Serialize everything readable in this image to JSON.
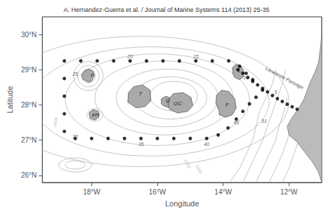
{
  "chart_data": {
    "type": "scatter",
    "title": "A. Hernandez-Guerra et al. / Journal of Marine Systems 114 (2013) 25-35",
    "xlabel": "Longitude",
    "ylabel": "Latitude",
    "xlim": [
      -19.5,
      -11.0
    ],
    "ylim": [
      25.8,
      30.5
    ],
    "xticks": [
      {
        "value": -18,
        "label": "18°W"
      },
      {
        "value": -16,
        "label": "16°W"
      },
      {
        "value": -14,
        "label": "14°W"
      },
      {
        "value": -12,
        "label": "12°W"
      }
    ],
    "yticks": [
      {
        "value": 26,
        "label": "26°N"
      },
      {
        "value": 27,
        "label": "27°N"
      },
      {
        "value": 28,
        "label": "28°N"
      },
      {
        "value": 29,
        "label": "29°N"
      },
      {
        "value": 30,
        "label": "30°N"
      }
    ],
    "grid": false,
    "contours": {
      "color": "#aaaaaa",
      "ellipses": [
        {
          "cx": -16.5,
          "cy": 28.1,
          "rx": 4.5,
          "ry": 1.85
        },
        {
          "cx": -16.2,
          "cy": 28.1,
          "rx": 3.6,
          "ry": 1.55
        },
        {
          "cx": -16.0,
          "cy": 28.15,
          "rx": 2.8,
          "ry": 1.3
        },
        {
          "cx": -15.8,
          "cy": 28.2,
          "rx": 2.1,
          "ry": 1.05
        },
        {
          "cx": -15.7,
          "cy": 28.2,
          "rx": 1.55,
          "ry": 0.82
        },
        {
          "cx": -15.6,
          "cy": 28.2,
          "rx": 1.1,
          "ry": 0.6
        },
        {
          "cx": -15.5,
          "cy": 28.25,
          "rx": 0.72,
          "ry": 0.42
        },
        {
          "cx": -18.1,
          "cy": 28.82,
          "rx": 0.21,
          "ry": 0.1925
        },
        {
          "cx": -18.1,
          "cy": 28.82,
          "rx": 0.33,
          "ry": 0.3025
        },
        {
          "cx": -18.1,
          "cy": 28.82,
          "rx": 0.45,
          "ry": 0.4125
        },
        {
          "cx": -17.9,
          "cy": 27.72,
          "rx": 0.14,
          "ry": 0.1
        },
        {
          "cx": -17.9,
          "cy": 27.72,
          "rx": 0.245,
          "ry": 0.175
        },
        {
          "cx": -18.5,
          "cy": 26.3,
          "rx": 0.3,
          "ry": 0.12
        },
        {
          "cx": -18.5,
          "cy": 26.3,
          "rx": 0.5,
          "ry": 0.2
        }
      ],
      "lines": [
        [
          [
            -13.8,
            25.8
          ],
          [
            -13.5,
            26.2
          ],
          [
            -13.3,
            26.6
          ],
          [
            -13.1,
            27.0
          ],
          [
            -13.0,
            27.4
          ],
          [
            -12.9,
            27.8
          ],
          [
            -12.7,
            28.2
          ],
          [
            -12.5,
            28.6
          ],
          [
            -12.4,
            29.0
          ]
        ],
        [
          [
            -13.4,
            25.8
          ],
          [
            -13.2,
            26.2
          ],
          [
            -13.0,
            26.6
          ],
          [
            -12.8,
            27.0
          ],
          [
            -12.65,
            27.4
          ],
          [
            -12.5,
            27.8
          ],
          [
            -12.35,
            28.2
          ],
          [
            -12.2,
            28.6
          ],
          [
            -12.1,
            29.0
          ]
        ],
        [
          [
            -13.0,
            25.8
          ],
          [
            -12.8,
            26.2
          ],
          [
            -12.6,
            26.6
          ],
          [
            -12.4,
            27.0
          ],
          [
            -12.3,
            27.4
          ],
          [
            -12.15,
            27.8
          ],
          [
            -12.05,
            28.2
          ]
        ],
        [
          [
            -12.6,
            25.8
          ],
          [
            -12.4,
            26.2
          ],
          [
            -12.2,
            26.6
          ],
          [
            -12.05,
            27.0
          ],
          [
            -11.9,
            27.4
          ],
          [
            -11.8,
            27.8
          ]
        ],
        [
          [
            -12.2,
            25.8
          ],
          [
            -12.0,
            26.2
          ],
          [
            -11.85,
            26.6
          ],
          [
            -11.7,
            27.0
          ],
          [
            -11.6,
            27.4
          ]
        ]
      ],
      "labels": [
        {
          "text": "-4000",
          "x": -19.1,
          "y": 27.5
        },
        {
          "text": "-3000",
          "x": -15.1,
          "y": 26.35
        },
        {
          "text": "-2000",
          "x": -14.75,
          "y": 26.2
        }
      ]
    },
    "land": {
      "color": "#bbbbbb",
      "coast": [
        [
          -11.0,
          25.8
        ],
        [
          -11.1,
          26.1
        ],
        [
          -11.3,
          26.4
        ],
        [
          -11.55,
          26.7
        ],
        [
          -11.75,
          26.95
        ],
        [
          -12.0,
          27.15
        ],
        [
          -12.05,
          27.4
        ],
        [
          -11.9,
          27.65
        ],
        [
          -11.7,
          27.9
        ],
        [
          -11.55,
          28.15
        ],
        [
          -11.45,
          28.4
        ],
        [
          -11.35,
          28.65
        ],
        [
          -11.2,
          28.95
        ],
        [
          -11.1,
          29.2
        ],
        [
          -11.05,
          29.55
        ],
        [
          -11.0,
          30.0
        ],
        [
          -11.0,
          30.5
        ]
      ]
    },
    "islands": {
      "color": "#aaaaaa",
      "items": [
        {
          "name": "P",
          "label_x": -17.98,
          "label_y": 28.83,
          "poly": [
            [
              -18.1,
              28.65
            ],
            [
              -18.25,
              28.72
            ],
            [
              -18.3,
              28.83
            ],
            [
              -18.22,
              28.97
            ],
            [
              -18.08,
              29.02
            ],
            [
              -17.95,
              28.95
            ],
            [
              -17.92,
              28.82
            ],
            [
              -18.0,
              28.68
            ],
            [
              -18.1,
              28.65
            ]
          ]
        },
        {
          "name": "G",
          "label_x": -15.68,
          "label_y": 28.12,
          "poly": [
            [
              -15.82,
              27.98
            ],
            [
              -15.65,
              27.92
            ],
            [
              -15.55,
              28.02
            ],
            [
              -15.6,
              28.2
            ],
            [
              -15.75,
              28.25
            ],
            [
              -15.88,
              28.17
            ],
            [
              -15.88,
              28.03
            ],
            [
              -15.82,
              27.98
            ]
          ]
        },
        {
          "name": "T",
          "label_x": -16.52,
          "label_y": 28.32,
          "poly": [
            [
              -16.9,
              28.08
            ],
            [
              -16.65,
              27.92
            ],
            [
              -16.38,
              27.95
            ],
            [
              -16.2,
              28.12
            ],
            [
              -16.22,
              28.42
            ],
            [
              -16.45,
              28.57
            ],
            [
              -16.72,
              28.52
            ],
            [
              -16.88,
              28.35
            ],
            [
              -16.9,
              28.08
            ]
          ]
        },
        {
          "name": "eH",
          "label_x": -17.88,
          "label_y": 27.72,
          "poly": [
            [
              -18.05,
              27.62
            ],
            [
              -17.9,
              27.57
            ],
            [
              -17.78,
              27.65
            ],
            [
              -17.8,
              27.82
            ],
            [
              -17.95,
              27.87
            ],
            [
              -18.08,
              27.78
            ],
            [
              -18.05,
              27.62
            ]
          ]
        },
        {
          "name": "GC",
          "label_x": -15.38,
          "label_y": 28.05,
          "poly": [
            [
              -15.62,
              27.87
            ],
            [
              -15.38,
              27.77
            ],
            [
              -15.08,
              27.82
            ],
            [
              -14.92,
              27.98
            ],
            [
              -14.98,
              28.22
            ],
            [
              -15.22,
              28.35
            ],
            [
              -15.52,
              28.32
            ],
            [
              -15.68,
              28.12
            ],
            [
              -15.65,
              27.92
            ],
            [
              -15.62,
              27.87
            ]
          ]
        },
        {
          "name": "F",
          "label_x": -13.88,
          "label_y": 28.0,
          "poly": [
            [
              -14.12,
              27.72
            ],
            [
              -13.92,
              27.65
            ],
            [
              -13.72,
              27.72
            ],
            [
              -13.6,
              27.92
            ],
            [
              -13.65,
              28.18
            ],
            [
              -13.82,
              28.38
            ],
            [
              -14.05,
              28.42
            ],
            [
              -14.2,
              28.28
            ],
            [
              -14.22,
              28.05
            ],
            [
              -14.12,
              27.82
            ],
            [
              -14.12,
              27.72
            ]
          ]
        },
        {
          "name": "L",
          "label_x": -13.5,
          "label_y": 28.98,
          "poly": [
            [
              -13.65,
              28.78
            ],
            [
              -13.5,
              28.72
            ],
            [
              -13.38,
              28.8
            ],
            [
              -13.38,
              28.98
            ],
            [
              -13.48,
              29.12
            ],
            [
              -13.62,
              29.15
            ],
            [
              -13.72,
              29.05
            ],
            [
              -13.7,
              28.88
            ],
            [
              -13.65,
              28.78
            ]
          ]
        }
      ]
    },
    "stations": {
      "color": "#000000",
      "points": [
        [
          -18.83,
          29.25
        ],
        [
          -18.33,
          29.25
        ],
        [
          -17.83,
          29.25
        ],
        [
          -17.33,
          29.25
        ],
        [
          -16.83,
          29.25
        ],
        [
          -16.33,
          29.25
        ],
        [
          -15.83,
          29.25
        ],
        [
          -15.33,
          29.25
        ],
        [
          -14.83,
          29.25
        ],
        [
          -14.33,
          29.25
        ],
        [
          -13.83,
          29.25
        ],
        [
          -13.5,
          29.1
        ],
        [
          -13.3,
          28.9
        ],
        [
          -13.1,
          28.72
        ],
        [
          -18.83,
          28.75
        ],
        [
          -18.83,
          28.25
        ],
        [
          -18.83,
          27.75
        ],
        [
          -18.83,
          27.25
        ],
        [
          -18.5,
          27.05
        ],
        [
          -18.0,
          27.05
        ],
        [
          -17.5,
          27.05
        ],
        [
          -17.0,
          27.05
        ],
        [
          -16.5,
          27.05
        ],
        [
          -16.0,
          27.05
        ],
        [
          -15.5,
          27.05
        ],
        [
          -15.0,
          27.05
        ],
        [
          -14.5,
          27.05
        ],
        [
          -14.15,
          27.15
        ],
        [
          -13.85,
          27.35
        ],
        [
          -13.6,
          27.6
        ],
        [
          -13.4,
          27.82
        ],
        [
          -13.2,
          28.03
        ],
        [
          -13.0,
          28.22
        ],
        [
          -12.8,
          28.42
        ]
      ],
      "passage_points": [
        [
          -13.55,
          29.0
        ],
        [
          -13.4,
          28.9
        ],
        [
          -13.25,
          28.78
        ],
        [
          -13.1,
          28.67
        ],
        [
          -12.95,
          28.57
        ],
        [
          -12.8,
          28.47
        ],
        [
          -12.65,
          28.37
        ],
        [
          -12.5,
          28.27
        ],
        [
          -12.35,
          28.18
        ],
        [
          -12.2,
          28.1
        ],
        [
          -12.05,
          28.02
        ],
        [
          -11.9,
          27.95
        ],
        [
          -11.75,
          27.88
        ]
      ],
      "labels": [
        {
          "label": "20",
          "x": -16.83,
          "y": 29.38
        },
        {
          "label": "15",
          "x": -14.83,
          "y": 29.38
        },
        {
          "label": "25",
          "x": -18.5,
          "y": 28.88
        },
        {
          "label": "10",
          "x": -13.3,
          "y": 28.77
        },
        {
          "label": "5",
          "x": -12.4,
          "y": 28.35
        },
        {
          "label": "30",
          "x": -18.5,
          "y": 27.1
        },
        {
          "label": "35",
          "x": -16.5,
          "y": 26.88
        },
        {
          "label": "40",
          "x": -14.5,
          "y": 26.88
        },
        {
          "label": "45",
          "x": -13.6,
          "y": 27.5
        },
        {
          "label": "51",
          "x": -12.75,
          "y": 27.55
        }
      ]
    },
    "annotations": [
      {
        "text": "Lanzarote Passage",
        "x": -12.7,
        "y": 29.05
      }
    ]
  }
}
